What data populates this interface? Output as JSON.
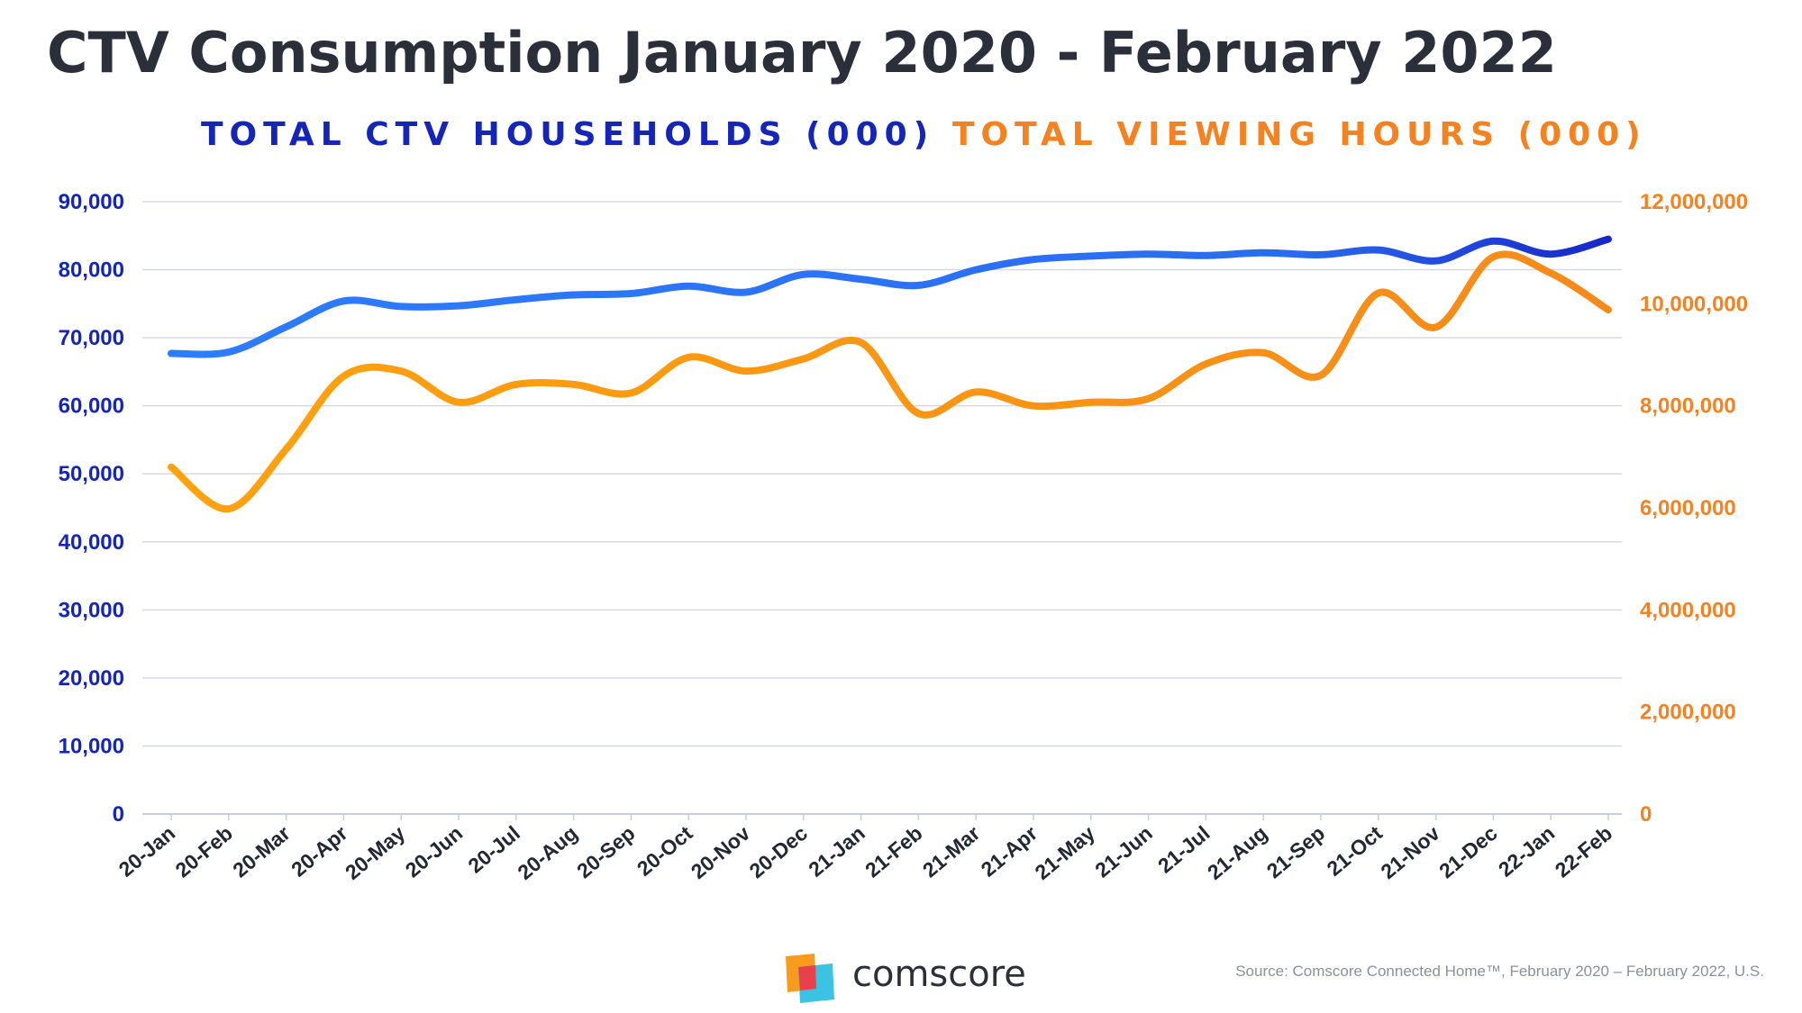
{
  "colors": {
    "households_start": "#2e7cff",
    "households_end": "#1628c8",
    "viewing_start": "#ffa20e",
    "viewing_end": "#f58a1a",
    "axis_left": "#1425b8",
    "axis_right": "#f58220",
    "grid": "#d7dae3",
    "title": "#2a2f3a"
  },
  "chart_data": {
    "type": "line",
    "title": "CTV Consumption January 2020 - February 2022",
    "categories": [
      "20-Jan",
      "20-Feb",
      "20-Mar",
      "20-Apr",
      "20-May",
      "20-Jun",
      "20-Jul",
      "20-Aug",
      "20-Sep",
      "20-Oct",
      "20-Nov",
      "20-Dec",
      "21-Jan",
      "21-Feb",
      "21-Mar",
      "21-Apr",
      "21-May",
      "21-Jun",
      "21-Jul",
      "21-Aug",
      "21-Sep",
      "21-Oct",
      "21-Nov",
      "21-Dec",
      "22-Jan",
      "22-Feb"
    ],
    "series": [
      {
        "name": "TOTAL CTV HOUSEHOLDS (000)",
        "axis": "left",
        "values": [
          67700,
          67900,
          71600,
          75400,
          74600,
          74700,
          75600,
          76300,
          76500,
          77600,
          76700,
          79300,
          78600,
          77700,
          80000,
          81500,
          82000,
          82300,
          82100,
          82500,
          82200,
          82900,
          81300,
          84200,
          82300,
          84500
        ]
      },
      {
        "name": "TOTAL VIEWING HOURS (000)",
        "axis": "right",
        "values": [
          6800000,
          5980000,
          7150000,
          8580000,
          8680000,
          8070000,
          8420000,
          8420000,
          8250000,
          8950000,
          8680000,
          8920000,
          9240000,
          7850000,
          8270000,
          8000000,
          8070000,
          8140000,
          8820000,
          9040000,
          8600000,
          10210000,
          9540000,
          10920000,
          10600000,
          9880000
        ]
      }
    ],
    "left_axis": {
      "min": 0,
      "max": 90000,
      "ticks": [
        "0",
        "10,000",
        "20,000",
        "30,000",
        "40,000",
        "50,000",
        "60,000",
        "70,000",
        "80,000",
        "90,000"
      ]
    },
    "right_axis": {
      "min": 0,
      "max": 12000000,
      "ticks": [
        "0",
        "2,000,000",
        "4,000,000",
        "6,000,000",
        "8,000,000",
        "10,000,000",
        "12,000,000"
      ]
    },
    "grid": true,
    "legend_position": "top"
  },
  "footer": {
    "brand": "comscore",
    "source": "Source: Comscore Connected Home™, February 2020 – February 2022, U.S."
  }
}
